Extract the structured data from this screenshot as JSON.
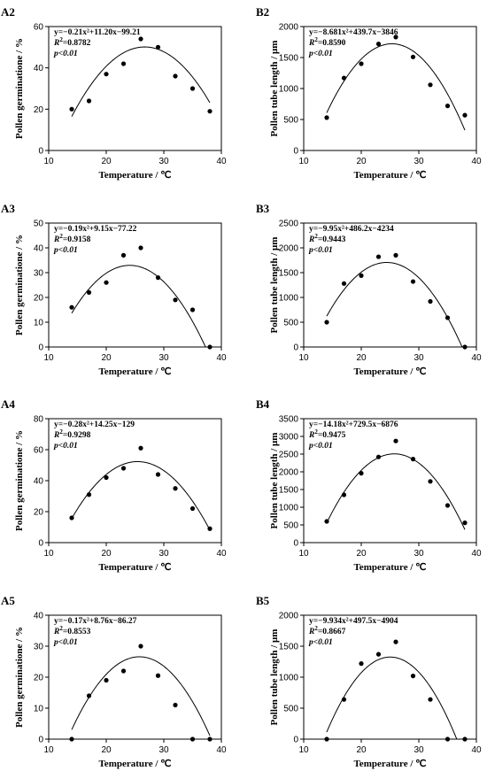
{
  "chart_data": [
    {
      "type": "scatter",
      "panel_label": "A2",
      "equation_text": "y=−0.21x²+11.20x−99.21",
      "r2_label": "R",
      "r2_value": "=0.8782",
      "p_text": "p<0.01",
      "coef": [
        -0.21,
        11.2,
        -99.21
      ],
      "xlabel": "Temperature / ℃",
      "ylabel": "Pollen germinatione / %",
      "xlim": [
        10,
        40
      ],
      "ylim": [
        0,
        60
      ],
      "xticks": [
        10,
        20,
        30,
        40
      ],
      "yticks": [
        0,
        20,
        40,
        60
      ],
      "x": [
        14,
        17,
        20,
        23,
        26,
        29,
        32,
        35,
        38
      ],
      "y": [
        20,
        24,
        37,
        42,
        54,
        50,
        36,
        30,
        19
      ]
    },
    {
      "type": "scatter",
      "panel_label": "B2",
      "equation_text": "y=−8.681x²+439.7x−3846",
      "r2_label": "R",
      "r2_value": "=0.8590",
      "p_text": "p<0.01",
      "coef": [
        -8.681,
        439.7,
        -3846
      ],
      "xlabel": "Temperature / ℃",
      "ylabel": "Pollen tube length / μm",
      "xlim": [
        10,
        40
      ],
      "ylim": [
        0,
        2000
      ],
      "xticks": [
        10,
        20,
        30,
        40
      ],
      "yticks": [
        0,
        500,
        1000,
        1500,
        2000
      ],
      "x": [
        14,
        17,
        20,
        23,
        26,
        29,
        32,
        35,
        38
      ],
      "y": [
        530,
        1170,
        1400,
        1720,
        1830,
        1510,
        1060,
        720,
        570
      ]
    },
    {
      "type": "scatter",
      "panel_label": "A3",
      "equation_text": "y=−0.19x²+9.15x−77.22",
      "r2_label": "R",
      "r2_value": "=0.9158",
      "p_text": "p<0.01",
      "coef": [
        -0.19,
        9.15,
        -77.22
      ],
      "xlabel": "Temperature / ℃",
      "ylabel": "Pollen germinatione / %",
      "xlim": [
        10,
        40
      ],
      "ylim": [
        0,
        50
      ],
      "xticks": [
        10,
        20,
        30,
        40
      ],
      "yticks": [
        0,
        10,
        20,
        30,
        40,
        50
      ],
      "x": [
        14,
        17,
        20,
        23,
        26,
        29,
        32,
        35,
        38
      ],
      "y": [
        16,
        22,
        26,
        37,
        40,
        28,
        19,
        15,
        0
      ]
    },
    {
      "type": "scatter",
      "panel_label": "B3",
      "equation_text": "y=−9.95x²+486.2x−4234",
      "r2_label": "R",
      "r2_value": "=0.9443",
      "p_text": "p<0.01",
      "coef": [
        -9.95,
        486.2,
        -4234
      ],
      "xlabel": "Temperature / ℃",
      "ylabel": "Pollen tube length / μm",
      "xlim": [
        10,
        40
      ],
      "ylim": [
        0,
        2500
      ],
      "xticks": [
        10,
        20,
        30,
        40
      ],
      "yticks": [
        0,
        500,
        1000,
        1500,
        2000,
        2500
      ],
      "x": [
        14,
        17,
        20,
        23,
        26,
        29,
        32,
        35,
        38
      ],
      "y": [
        500,
        1280,
        1440,
        1820,
        1850,
        1320,
        920,
        590,
        0
      ]
    },
    {
      "type": "scatter",
      "panel_label": "A4",
      "equation_text": "y=−0.28x²+14.25x−129",
      "r2_label": "R",
      "r2_value": "=0.9298",
      "p_text": "p<0.01",
      "coef": [
        -0.28,
        14.25,
        -129
      ],
      "xlabel": "Temperature / ℃",
      "ylabel": "Pollen germinatione / %",
      "xlim": [
        10,
        40
      ],
      "ylim": [
        0,
        80
      ],
      "xticks": [
        10,
        20,
        30,
        40
      ],
      "yticks": [
        0,
        20,
        40,
        60,
        80
      ],
      "x": [
        14,
        17,
        20,
        23,
        26,
        29,
        32,
        35,
        38
      ],
      "y": [
        16,
        31,
        42,
        48,
        61,
        44,
        35,
        22,
        9
      ]
    },
    {
      "type": "scatter",
      "panel_label": "B4",
      "equation_text": "y=−14.18x²+729.5x−6876",
      "r2_label": "R",
      "r2_value": "=0.9475",
      "p_text": "p<0.01",
      "coef": [
        -14.18,
        729.5,
        -6876
      ],
      "xlabel": "Temperature / ℃",
      "ylabel": "Pollen tube length / μm",
      "xlim": [
        10,
        40
      ],
      "ylim": [
        0,
        3500
      ],
      "xticks": [
        10,
        20,
        30,
        40
      ],
      "yticks": [
        0,
        500,
        1000,
        1500,
        2000,
        2500,
        3000,
        3500
      ],
      "x": [
        14,
        17,
        20,
        23,
        26,
        29,
        32,
        35,
        38
      ],
      "y": [
        600,
        1350,
        1960,
        2420,
        2870,
        2360,
        1730,
        1050,
        560
      ]
    },
    {
      "type": "scatter",
      "panel_label": "A5",
      "equation_text": "y=−0.17x²+8.76x−86.27",
      "r2_label": "R",
      "r2_value": "=0.8553",
      "p_text": "p<0.01",
      "coef": [
        -0.17,
        8.76,
        -86.27
      ],
      "xlabel": "Temperature / ℃",
      "ylabel": "Pollen germinatione / %",
      "xlim": [
        10,
        40
      ],
      "ylim": [
        0,
        40
      ],
      "xticks": [
        10,
        20,
        30,
        40
      ],
      "yticks": [
        0,
        10,
        20,
        30,
        40
      ],
      "x": [
        14,
        17,
        20,
        23,
        26,
        29,
        32,
        35,
        38
      ],
      "y": [
        0,
        14,
        19,
        22,
        30,
        20.5,
        11,
        0,
        0
      ]
    },
    {
      "type": "scatter",
      "panel_label": "B5",
      "equation_text": "y=−9.934x²+497.5x−4904",
      "r2_label": "R",
      "r2_value": "=0.8667",
      "p_text": "p<0.01",
      "coef": [
        -9.934,
        497.5,
        -4904
      ],
      "xlabel": "Temperature / ℃",
      "ylabel": "Pollen tube length / μm",
      "xlim": [
        10,
        40
      ],
      "ylim": [
        0,
        2000
      ],
      "xticks": [
        10,
        20,
        30,
        40
      ],
      "yticks": [
        0,
        500,
        1000,
        1500,
        2000
      ],
      "x": [
        14,
        17,
        20,
        23,
        26,
        29,
        32,
        35,
        38
      ],
      "y": [
        0,
        640,
        1220,
        1370,
        1570,
        1020,
        640,
        0,
        0
      ]
    }
  ]
}
